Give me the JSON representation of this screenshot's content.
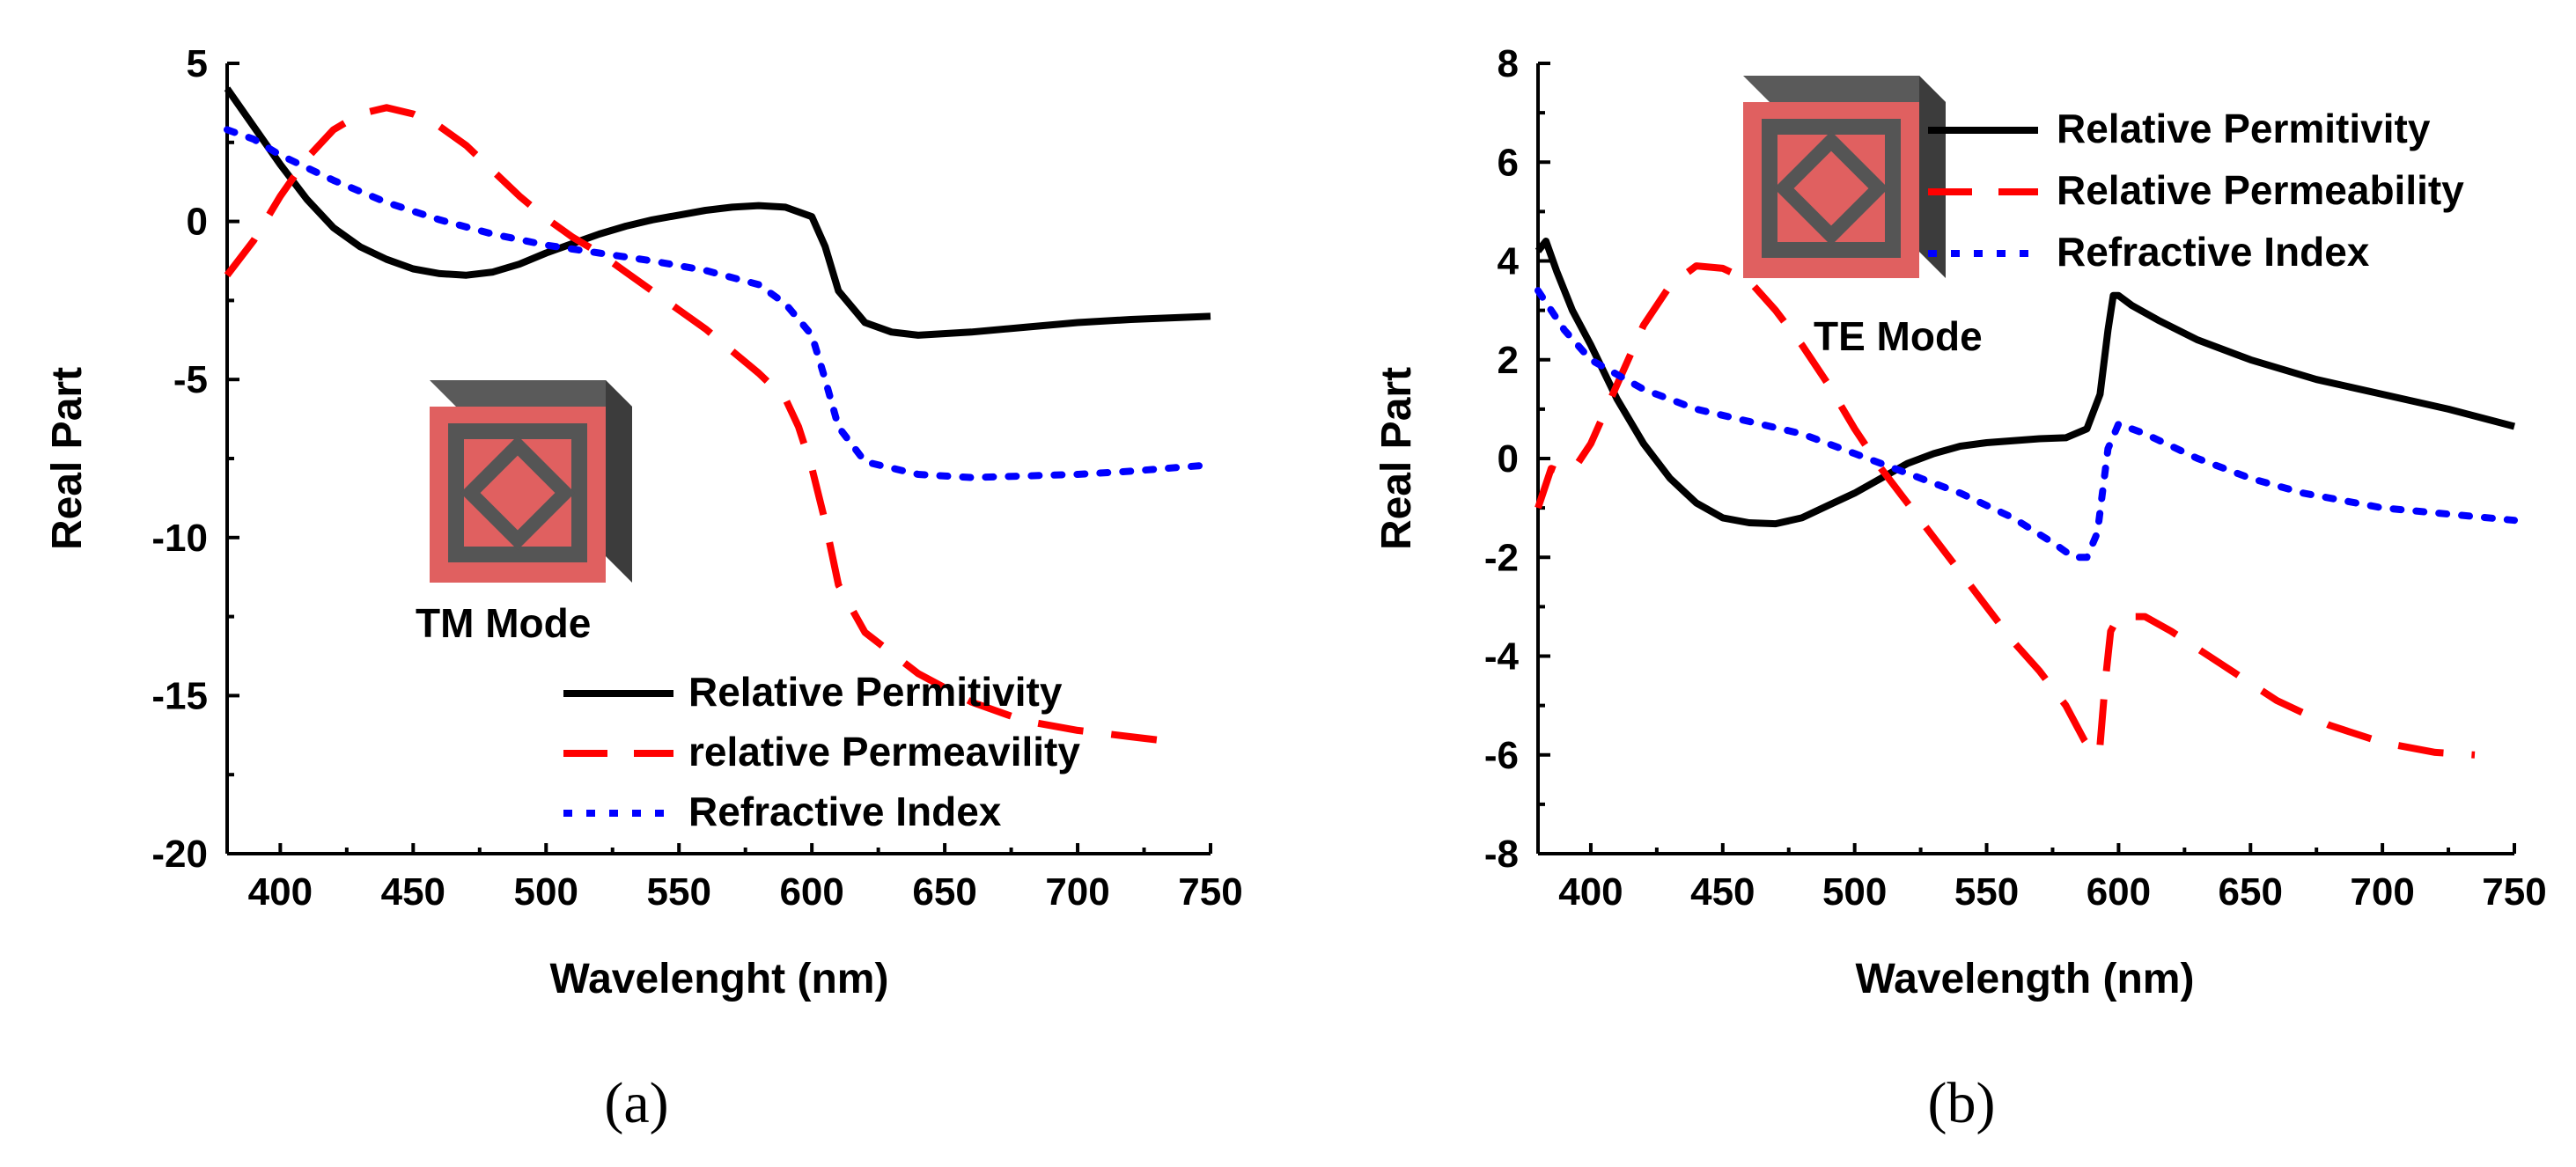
{
  "chart_data": [
    {
      "panel": "a",
      "type": "line",
      "panel_label": "(a)",
      "mode_label": "TM Mode",
      "xlabel": "Wavelenght (nm)",
      "ylabel": "Real Part",
      "xlim": [
        380,
        750
      ],
      "ylim": [
        -20,
        5
      ],
      "xticks": [
        400,
        450,
        500,
        550,
        600,
        650,
        700,
        750
      ],
      "yticks": [
        5,
        0,
        -5,
        -10,
        -15,
        -20
      ],
      "yminor": [
        2.5,
        -2.5,
        -7.5,
        -12.5,
        -17.5
      ],
      "legend_position": "bottom-right",
      "series": [
        {
          "name": "Relative Permitivity",
          "style": "solid",
          "color": "#000000",
          "x": [
            380,
            390,
            400,
            410,
            420,
            430,
            440,
            450,
            460,
            470,
            480,
            490,
            500,
            510,
            520,
            530,
            540,
            550,
            560,
            570,
            580,
            590,
            600,
            605,
            610,
            620,
            630,
            640,
            660,
            680,
            700,
            720,
            750
          ],
          "y": [
            4.2,
            3.0,
            1.8,
            0.7,
            -0.2,
            -0.8,
            -1.2,
            -1.5,
            -1.65,
            -1.7,
            -1.6,
            -1.35,
            -1.0,
            -0.7,
            -0.4,
            -0.15,
            0.05,
            0.2,
            0.35,
            0.45,
            0.5,
            0.45,
            0.15,
            -0.8,
            -2.2,
            -3.2,
            -3.5,
            -3.6,
            -3.5,
            -3.35,
            -3.2,
            -3.1,
            -3.0
          ]
        },
        {
          "name": "relative Permeavility",
          "style": "dashed",
          "color": "#ff0000",
          "x": [
            380,
            390,
            400,
            410,
            420,
            430,
            440,
            450,
            460,
            470,
            480,
            490,
            500,
            510,
            520,
            530,
            540,
            550,
            560,
            570,
            580,
            590,
            595,
            600,
            605,
            610,
            620,
            640,
            660,
            680,
            700,
            720,
            730
          ],
          "y": [
            -1.7,
            -0.6,
            0.8,
            2.0,
            2.9,
            3.4,
            3.6,
            3.4,
            3.0,
            2.4,
            1.6,
            0.8,
            0.1,
            -0.5,
            -1.0,
            -1.6,
            -2.2,
            -2.8,
            -3.4,
            -4.1,
            -4.8,
            -5.6,
            -6.5,
            -7.8,
            -9.5,
            -11.5,
            -13.0,
            -14.3,
            -15.2,
            -15.8,
            -16.1,
            -16.3,
            -16.4
          ]
        },
        {
          "name": "Refractive Index",
          "style": "dotted",
          "color": "#0000ff",
          "x": [
            380,
            390,
            400,
            420,
            440,
            460,
            480,
            500,
            520,
            540,
            560,
            580,
            590,
            600,
            605,
            610,
            620,
            640,
            660,
            680,
            700,
            720,
            750
          ],
          "y": [
            2.9,
            2.6,
            2.1,
            1.3,
            0.6,
            0.05,
            -0.4,
            -0.75,
            -1.0,
            -1.25,
            -1.55,
            -2.0,
            -2.6,
            -3.6,
            -5.0,
            -6.5,
            -7.6,
            -8.0,
            -8.1,
            -8.05,
            -8.0,
            -7.9,
            -7.7
          ]
        }
      ]
    },
    {
      "panel": "b",
      "type": "line",
      "panel_label": "(b)",
      "mode_label": "TE Mode",
      "xlabel": "Wavelength (nm)",
      "ylabel": "Real Part",
      "xlim": [
        380,
        750
      ],
      "ylim": [
        -8,
        8
      ],
      "xticks": [
        400,
        450,
        500,
        550,
        600,
        650,
        700,
        750
      ],
      "yticks": [
        8,
        6,
        4,
        2,
        0,
        -2,
        -4,
        -6,
        -8
      ],
      "yminor": [
        7,
        5,
        3,
        1,
        -1,
        -3,
        -5,
        -7
      ],
      "legend_position": "top-right",
      "series": [
        {
          "name": "Relative Permitivity",
          "style": "solid",
          "color": "#000000",
          "x": [
            380,
            383,
            387,
            393,
            400,
            410,
            420,
            430,
            440,
            450,
            460,
            470,
            480,
            490,
            500,
            510,
            520,
            530,
            540,
            550,
            560,
            570,
            580,
            588,
            593,
            596,
            598,
            600,
            605,
            615,
            630,
            650,
            675,
            700,
            725,
            750
          ],
          "y": [
            4.2,
            4.4,
            3.8,
            3.0,
            2.3,
            1.2,
            0.3,
            -0.4,
            -0.9,
            -1.2,
            -1.3,
            -1.32,
            -1.2,
            -0.95,
            -0.7,
            -0.4,
            -0.1,
            0.1,
            0.25,
            0.32,
            0.36,
            0.4,
            0.42,
            0.6,
            1.3,
            2.6,
            3.3,
            3.3,
            3.1,
            2.8,
            2.4,
            2.0,
            1.6,
            1.3,
            1.0,
            0.65
          ]
        },
        {
          "name": "Relative Permeability",
          "style": "dashed",
          "color": "#ff0000",
          "x": [
            380,
            385,
            390,
            395,
            400,
            410,
            420,
            430,
            440,
            450,
            460,
            470,
            480,
            490,
            500,
            510,
            520,
            530,
            540,
            550,
            560,
            570,
            580,
            587,
            591,
            593,
            595,
            597,
            600,
            610,
            620,
            640,
            660,
            680,
            700,
            720,
            735
          ],
          "y": [
            -1.0,
            -0.2,
            -0.3,
            -0.1,
            0.3,
            1.5,
            2.7,
            3.5,
            3.9,
            3.85,
            3.6,
            3.0,
            2.3,
            1.5,
            0.6,
            -0.2,
            -0.9,
            -1.6,
            -2.3,
            -3.0,
            -3.7,
            -4.3,
            -5.0,
            -5.7,
            -6.0,
            -5.8,
            -4.5,
            -3.5,
            -3.2,
            -3.2,
            -3.5,
            -4.2,
            -4.9,
            -5.4,
            -5.75,
            -5.95,
            -6.0
          ]
        },
        {
          "name": "Refractive Index",
          "style": "dotted",
          "color": "#0000ff",
          "x": [
            380,
            390,
            400,
            420,
            440,
            460,
            480,
            500,
            520,
            540,
            560,
            575,
            583,
            588,
            592,
            596,
            600,
            610,
            630,
            650,
            670,
            700,
            720,
            750
          ],
          "y": [
            3.4,
            2.6,
            2.0,
            1.4,
            1.0,
            0.75,
            0.5,
            0.1,
            -0.3,
            -0.7,
            -1.2,
            -1.7,
            -2.0,
            -2.0,
            -1.5,
            0.2,
            0.7,
            0.5,
            0.0,
            -0.4,
            -0.7,
            -1.0,
            -1.1,
            -1.25
          ]
        }
      ]
    }
  ]
}
